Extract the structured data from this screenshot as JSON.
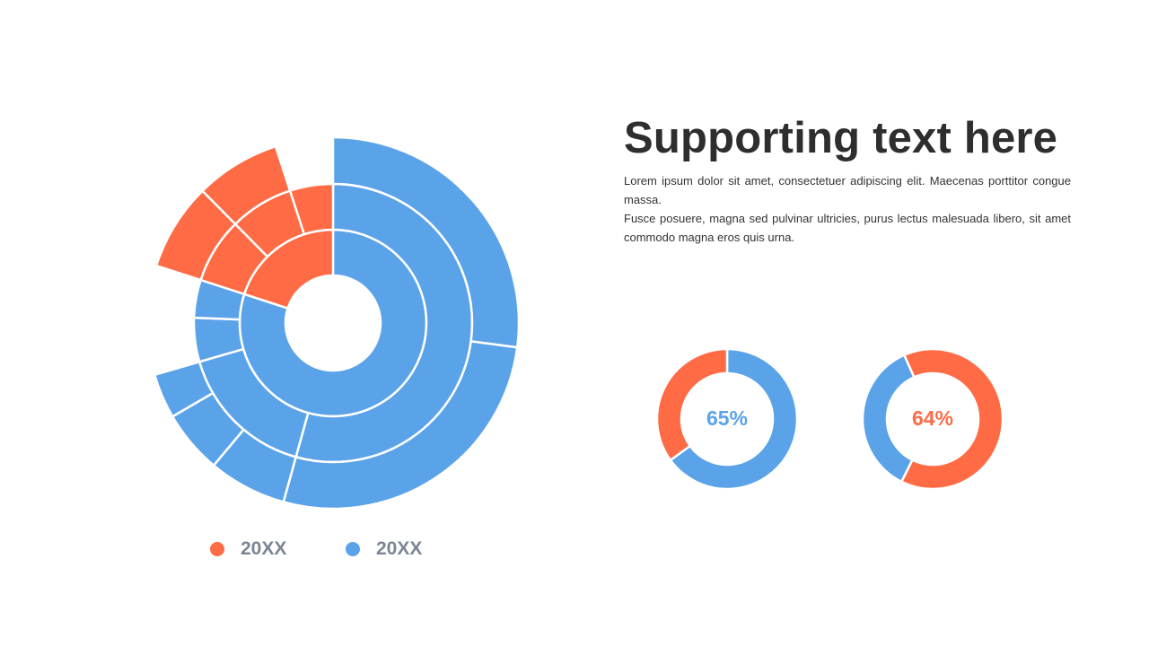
{
  "colors": {
    "blue": "#5BA3E9",
    "orange": "#FF6B45",
    "legend_text": "#7C8594"
  },
  "chart_data": [
    {
      "type": "sunburst",
      "title": "",
      "rings": 3,
      "nodes": [
        {
          "series": "blue",
          "value": 80,
          "children": [
            {
              "value": 54.3,
              "children": [
                {
                  "value": 27.1
                },
                {
                  "value": 27.2
                }
              ]
            },
            {
              "value": 16.2,
              "children": [
                {
                  "value": 6.8
                },
                {
                  "value": 5.5
                },
                {
                  "value": 3.9
                }
              ]
            },
            {
              "value": 5.1,
              "children": []
            },
            {
              "value": 4.6,
              "children": []
            }
          ]
        },
        {
          "series": "orange",
          "value": 20,
          "children": [
            {
              "value": 7.6,
              "children": [
                {
                  "value": 7.6
                }
              ]
            },
            {
              "value": 7.4,
              "children": [
                {
                  "value": 7.4
                }
              ]
            },
            {
              "value": 5.0,
              "children": []
            }
          ]
        }
      ],
      "legend": [
        {
          "label": "20XX",
          "color": "#FF6B45"
        },
        {
          "label": "20XX",
          "color": "#5BA3E9"
        }
      ],
      "legend_placement": "bottom"
    },
    {
      "type": "pie",
      "donut": true,
      "label": "65%",
      "label_color": "#5BA3E9",
      "slices": [
        {
          "value": 65,
          "color": "#5BA3E9"
        },
        {
          "value": 35,
          "color": "#FF6B45"
        }
      ]
    },
    {
      "type": "pie",
      "donut": true,
      "label": "64%",
      "label_color": "#FF6B45",
      "slices": [
        {
          "value": 64,
          "color": "#FF6B45"
        },
        {
          "value": 36,
          "color": "#5BA3E9"
        }
      ]
    }
  ],
  "heading": "Supporting text here",
  "paragraphs": [
    "Lorem ipsum dolor sit amet, consectetuer adipiscing elit. Maecenas porttitor congue massa.",
    "Fusce posuere, magna sed pulvinar ultricies, purus lectus malesuada libero, sit amet commodo magna eros quis urna."
  ]
}
